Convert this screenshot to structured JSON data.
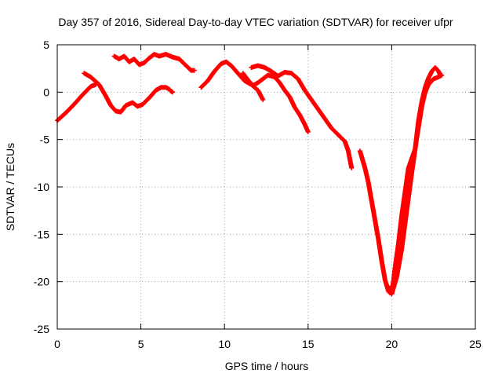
{
  "chart_data": {
    "type": "scatter",
    "title": "Day 357 of 2016, Sidereal Day-to-day VTEC variation (SDTVAR) for receiver ufpr",
    "xlabel": "GPS time / hours",
    "ylabel": "SDTVAR / TECUs",
    "xlim": [
      0,
      25
    ],
    "ylim": [
      -25,
      5
    ],
    "x_ticks": [
      0,
      5,
      10,
      15,
      20,
      25
    ],
    "y_ticks": [
      -25,
      -20,
      -15,
      -10,
      -5,
      0,
      5
    ],
    "x_tick_labels": [
      "0",
      "5",
      "10",
      "15",
      "20",
      "25"
    ],
    "y_tick_labels": [
      "-25",
      "-20",
      "-15",
      "-10",
      "-5",
      "0",
      "5"
    ],
    "grid": true,
    "marker": "plus",
    "color": "#ff0000",
    "series": [
      {
        "x": [
          0,
          0.5,
          1.0,
          1.5,
          2.0,
          2.3
        ],
        "y": [
          -3.0,
          -2.2,
          -1.3,
          -0.3,
          0.6,
          0.8
        ]
      },
      {
        "x": [
          1.6,
          2.0,
          2.5,
          2.9,
          3.2,
          3.5,
          3.8,
          4.1,
          4.5,
          4.8,
          5.1,
          5.5,
          5.9,
          6.2,
          6.5,
          6.7,
          6.8,
          6.9
        ],
        "y": [
          2.0,
          1.6,
          0.8,
          -0.4,
          -1.4,
          -2.0,
          -2.1,
          -1.4,
          -1.1,
          -1.5,
          -1.3,
          -0.6,
          0.2,
          0.5,
          0.5,
          0.3,
          0.1,
          0.0
        ]
      },
      {
        "x": [
          3.4,
          3.7,
          4.0,
          4.3,
          4.6,
          4.9,
          5.2,
          5.5,
          5.8,
          6.1,
          6.5,
          6.9,
          7.3,
          7.7,
          8.0,
          8.2
        ],
        "y": [
          3.8,
          3.5,
          3.8,
          3.2,
          3.5,
          2.9,
          3.1,
          3.6,
          4.0,
          3.8,
          4.0,
          3.7,
          3.5,
          2.8,
          2.3,
          2.3
        ]
      },
      {
        "x": [
          8.6,
          9.0,
          9.4,
          9.8,
          10.1,
          10.4,
          10.8,
          11.2,
          11.6,
          12.0,
          12.3
        ],
        "y": [
          0.5,
          1.2,
          2.2,
          3.0,
          3.2,
          2.8,
          2.0,
          1.2,
          0.8,
          0.2,
          -0.8
        ]
      },
      {
        "x": [
          11.1,
          11.4,
          11.7,
          12.0,
          12.3,
          12.6,
          13.0,
          13.3,
          13.6,
          13.9,
          14.2,
          14.5,
          14.8,
          15.0
        ],
        "y": [
          2.0,
          1.3,
          0.7,
          1.0,
          1.4,
          1.8,
          1.6,
          1.0,
          0.2,
          -0.5,
          -1.6,
          -2.4,
          -3.4,
          -4.2
        ]
      },
      {
        "x": [
          11.6,
          12.0,
          12.4,
          12.8,
          13.2,
          13.6,
          14.0,
          14.4,
          14.8,
          15.2,
          15.6,
          16.0,
          16.4,
          16.8,
          17.2,
          17.4,
          17.6
        ],
        "y": [
          2.6,
          2.8,
          2.6,
          2.2,
          1.7,
          2.1,
          2.0,
          1.4,
          0.2,
          -0.8,
          -1.8,
          -2.8,
          -3.8,
          -4.5,
          -5.2,
          -6.2,
          -8.0
        ]
      },
      {
        "x": [
          18.1,
          18.4,
          18.6,
          18.8,
          19.0,
          19.2,
          19.4,
          19.6,
          19.8,
          19.9,
          20.0,
          20.1,
          20.2,
          20.4,
          20.6,
          20.8,
          21.0,
          21.2,
          21.4,
          21.6,
          21.8,
          22.0,
          22.2,
          22.4,
          22.6,
          22.8,
          22.9
        ],
        "y": [
          -6.2,
          -8.0,
          -9.5,
          -11.5,
          -13.5,
          -15.5,
          -17.8,
          -19.8,
          -21.0,
          -21.2,
          -20.8,
          -20.0,
          -18.5,
          -16.0,
          -13.0,
          -10.5,
          -8.0,
          -7.0,
          -6.0,
          -3.0,
          -1.0,
          0.5,
          1.5,
          2.2,
          2.6,
          2.2,
          1.8
        ]
      },
      {
        "x": [
          19.8,
          20.0,
          20.3,
          20.6,
          20.9,
          21.2,
          21.5,
          21.8,
          22.0,
          22.2,
          22.5,
          22.8,
          23.0
        ],
        "y": [
          -20.5,
          -21.3,
          -19.5,
          -16.5,
          -12.5,
          -8.5,
          -4.8,
          -1.5,
          0.0,
          0.8,
          1.4,
          1.6,
          1.8
        ]
      }
    ]
  }
}
